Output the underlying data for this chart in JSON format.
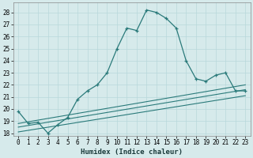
{
  "xlabel": "Humidex (Indice chaleur)",
  "bg_color": "#d6eaeb",
  "grid_color": "#b8d8db",
  "line_color": "#2a7a7a",
  "xlim": [
    -0.5,
    23.5
  ],
  "ylim": [
    17.8,
    28.8
  ],
  "yticks": [
    18,
    19,
    20,
    21,
    22,
    23,
    24,
    25,
    26,
    27,
    28
  ],
  "xticks": [
    0,
    1,
    2,
    3,
    4,
    5,
    6,
    7,
    8,
    9,
    10,
    11,
    12,
    13,
    14,
    15,
    16,
    17,
    18,
    19,
    20,
    21,
    22,
    23
  ],
  "main_x": [
    0,
    1,
    2,
    3,
    4,
    5,
    6,
    7,
    8,
    9,
    10,
    11,
    12,
    13,
    14,
    15,
    16,
    17,
    18,
    19,
    20,
    21,
    22,
    23
  ],
  "main_y": [
    19.8,
    18.8,
    18.9,
    18.0,
    18.7,
    19.3,
    20.8,
    21.5,
    22.0,
    23.0,
    25.0,
    26.7,
    26.5,
    28.2,
    28.0,
    27.5,
    26.7,
    24.0,
    22.5,
    22.3,
    22.8,
    23.0,
    21.5,
    21.5
  ],
  "reg_lines": [
    {
      "x0": 0,
      "y0": 18.8,
      "x1": 23,
      "y1": 22.0
    },
    {
      "x0": 0,
      "y0": 18.5,
      "x1": 23,
      "y1": 21.6
    },
    {
      "x0": 0,
      "y0": 18.1,
      "x1": 23,
      "y1": 21.1
    }
  ]
}
